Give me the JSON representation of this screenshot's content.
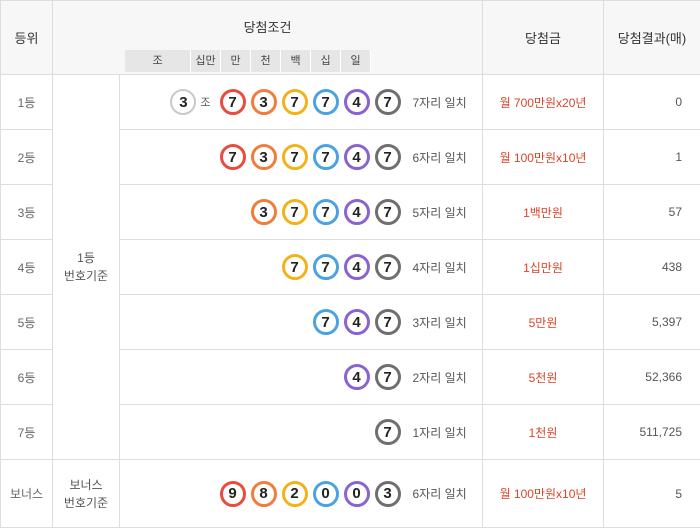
{
  "header": {
    "rank": "등위",
    "condition": "당첨조건",
    "prize": "당첨금",
    "result": "당첨결과(매)",
    "subcols": [
      "조",
      "십만",
      "만",
      "천",
      "백",
      "십",
      "일"
    ]
  },
  "basis_first": [
    "1등",
    "번호기준"
  ],
  "basis_bonus": [
    "보너스",
    "번호기준"
  ],
  "rows": [
    {
      "rank": "1등",
      "jo": "3",
      "jo_label": "조",
      "balls": [
        "7",
        "3",
        "7",
        "7",
        "4",
        "7"
      ],
      "match": "7자리 일치",
      "prize": "월 700만원x20년",
      "count": "0"
    },
    {
      "rank": "2등",
      "balls": [
        "7",
        "3",
        "7",
        "7",
        "4",
        "7"
      ],
      "match": "6자리 일치",
      "prize": "월 100만원x10년",
      "count": "1"
    },
    {
      "rank": "3등",
      "balls": [
        "3",
        "7",
        "7",
        "4",
        "7"
      ],
      "match": "5자리 일치",
      "prize": "1백만원",
      "count": "57"
    },
    {
      "rank": "4등",
      "balls": [
        "7",
        "7",
        "4",
        "7"
      ],
      "match": "4자리 일치",
      "prize": "1십만원",
      "count": "438"
    },
    {
      "rank": "5등",
      "balls": [
        "7",
        "4",
        "7"
      ],
      "match": "3자리 일치",
      "prize": "5만원",
      "count": "5,397"
    },
    {
      "rank": "6등",
      "balls": [
        "4",
        "7"
      ],
      "match": "2자리 일치",
      "prize": "5천원",
      "count": "52,366"
    },
    {
      "rank": "7등",
      "balls": [
        "7"
      ],
      "match": "1자리 일치",
      "prize": "1천원",
      "count": "511,725"
    }
  ],
  "bonus": {
    "rank": "보너스",
    "balls": [
      "9",
      "8",
      "2",
      "0",
      "0",
      "3"
    ],
    "match": "6자리 일치",
    "prize": "월 100만원x10년",
    "count": "5"
  },
  "ball_colors": {
    "십만": "#e74c3c",
    "만": "#ef7e3c",
    "천": "#f2b21a",
    "백": "#4aa3e0",
    "십": "#8a63d2",
    "일": "#6f6f6f",
    "조": "#c9c9c9"
  }
}
